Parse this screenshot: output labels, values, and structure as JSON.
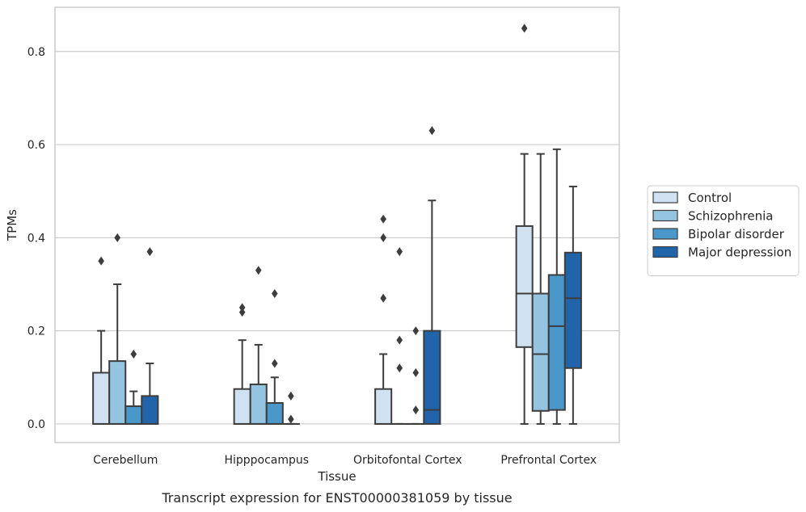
{
  "chart_data": {
    "type": "boxplot",
    "xlabel": "Tissue",
    "ylabel": "TPMs",
    "caption": "Transcript expression for ENST00000381059 by tissue",
    "ylim": [
      -0.04,
      0.895
    ],
    "yticks": [
      0.0,
      0.2,
      0.4,
      0.6,
      0.8
    ],
    "ytick_labels": [
      "0.0",
      "0.2",
      "0.4",
      "0.6",
      "0.8"
    ],
    "grid": "horizontal",
    "legend_position": "right",
    "categories": [
      "Cerebellum",
      "Hipppocampus",
      "Orbitofontal Cortex",
      "Prefrontal Cortex"
    ],
    "series": [
      {
        "name": "Control",
        "color": "#d0e1f2",
        "boxes": [
          {
            "whislo": 0.0,
            "q1": 0.0,
            "med": 0.0,
            "q3": 0.11,
            "whishi": 0.2,
            "fliers": [
              0.35
            ]
          },
          {
            "whislo": 0.0,
            "q1": 0.0,
            "med": 0.0,
            "q3": 0.075,
            "whishi": 0.18,
            "fliers": [
              0.24,
              0.25
            ]
          },
          {
            "whislo": 0.0,
            "q1": 0.0,
            "med": 0.0,
            "q3": 0.075,
            "whishi": 0.15,
            "fliers": [
              0.27,
              0.4,
              0.44
            ]
          },
          {
            "whislo": 0.0,
            "q1": 0.165,
            "med": 0.28,
            "q3": 0.425,
            "whishi": 0.58,
            "fliers": [
              0.85
            ]
          }
        ]
      },
      {
        "name": "Schizophrenia",
        "color": "#94c4df",
        "boxes": [
          {
            "whislo": 0.0,
            "q1": 0.0,
            "med": 0.0,
            "q3": 0.135,
            "whishi": 0.3,
            "fliers": [
              0.4
            ]
          },
          {
            "whislo": 0.0,
            "q1": 0.0,
            "med": 0.0,
            "q3": 0.085,
            "whishi": 0.17,
            "fliers": [
              0.33
            ]
          },
          {
            "whislo": 0.0,
            "q1": 0.0,
            "med": 0.0,
            "q3": 0.0,
            "whishi": 0.0,
            "fliers": [
              0.12,
              0.18,
              0.37
            ]
          },
          {
            "whislo": 0.0,
            "q1": 0.028,
            "med": 0.15,
            "q3": 0.28,
            "whishi": 0.58,
            "fliers": []
          }
        ]
      },
      {
        "name": "Bipolar disorder",
        "color": "#4a98c9",
        "boxes": [
          {
            "whislo": 0.0,
            "q1": 0.0,
            "med": 0.0,
            "q3": 0.038,
            "whishi": 0.07,
            "fliers": [
              0.15
            ]
          },
          {
            "whislo": 0.0,
            "q1": 0.0,
            "med": 0.0,
            "q3": 0.045,
            "whishi": 0.1,
            "fliers": [
              0.13,
              0.28
            ]
          },
          {
            "whislo": 0.0,
            "q1": 0.0,
            "med": 0.0,
            "q3": 0.0,
            "whishi": 0.0,
            "fliers": [
              0.03,
              0.11,
              0.2
            ]
          },
          {
            "whislo": 0.0,
            "q1": 0.03,
            "med": 0.21,
            "q3": 0.32,
            "whishi": 0.59,
            "fliers": []
          }
        ]
      },
      {
        "name": "Major depression",
        "color": "#2264aa",
        "boxes": [
          {
            "whislo": 0.0,
            "q1": 0.0,
            "med": 0.0,
            "q3": 0.06,
            "whishi": 0.13,
            "fliers": [
              0.37
            ]
          },
          {
            "whislo": 0.0,
            "q1": 0.0,
            "med": 0.0,
            "q3": 0.0,
            "whishi": 0.0,
            "fliers": [
              0.01,
              0.06
            ]
          },
          {
            "whislo": 0.0,
            "q1": 0.0,
            "med": 0.03,
            "q3": 0.2,
            "whishi": 0.48,
            "fliers": [
              0.63
            ]
          },
          {
            "whislo": 0.0,
            "q1": 0.12,
            "med": 0.27,
            "q3": 0.368,
            "whishi": 0.51,
            "fliers": []
          }
        ]
      }
    ]
  }
}
